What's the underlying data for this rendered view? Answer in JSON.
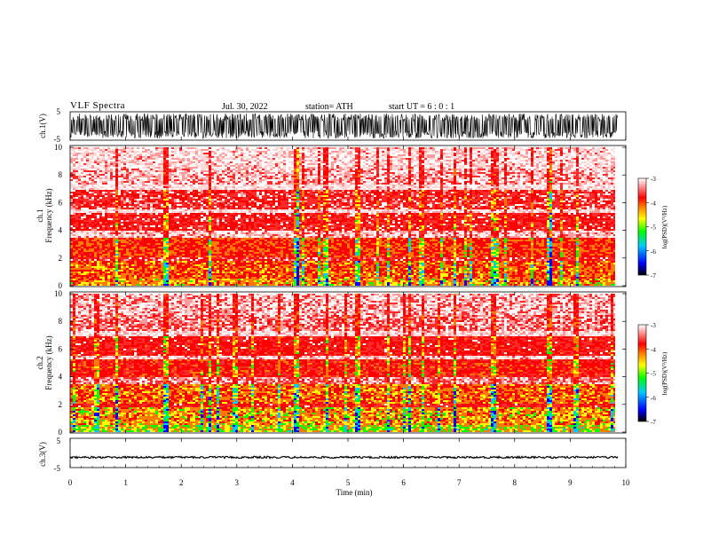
{
  "header": {
    "title": "VLF  Spectra",
    "date": "Jul.  30,  2022",
    "station": "station= ATH",
    "start": "start  UT  =    6  : 0   : 1"
  },
  "chart_data": [
    {
      "type": "line",
      "panel": "ch1-waveform",
      "ylabel": "ch.1(V)",
      "ylim": [
        -5,
        5
      ],
      "yticks": [
        "5",
        "-5"
      ],
      "xlim": [
        0,
        10
      ],
      "description_values": {
        "amplitude_range": [
          -5,
          5
        ],
        "data_end_min": 9.8
      }
    },
    {
      "type": "heatmap",
      "panel": "ch1-spectrogram",
      "ylabel": "ch.1\nFrequency  (kHz)",
      "ylabel_line1": "ch.1",
      "ylabel_line2": "Frequency  (kHz)",
      "ylim": [
        0,
        10
      ],
      "yticks": [
        "0",
        "2",
        "4",
        "6",
        "8",
        "10"
      ],
      "xlim": [
        0,
        10
      ],
      "colorbar": {
        "label": "log(PSD)(V²/Hz)",
        "range": [
          -7,
          -3
        ],
        "ticks": [
          "-3",
          "-4",
          "-5",
          "-6",
          "-7"
        ]
      }
    },
    {
      "type": "heatmap",
      "panel": "ch2-spectrogram",
      "ylabel_line1": "ch.2",
      "ylabel_line2": "Frequency  (kHz)",
      "ylim": [
        0,
        10
      ],
      "yticks": [
        "0",
        "2",
        "4",
        "6",
        "8",
        "10"
      ],
      "xlim": [
        0,
        10
      ],
      "colorbar": {
        "label": "log(PSD)(V²/Hz)",
        "range": [
          -7,
          -3
        ],
        "ticks": [
          "-3",
          "-4",
          "-5",
          "-6",
          "-7"
        ]
      }
    },
    {
      "type": "line",
      "panel": "ch3-waveform",
      "ylabel": "ch.3(V)",
      "ylim": [
        -5,
        5
      ],
      "yticks": [
        "5",
        "-5"
      ],
      "xlim": [
        0,
        10
      ],
      "xlabel": "Time  (min)",
      "xticks": [
        "0",
        "1",
        "2",
        "3",
        "4",
        "5",
        "6",
        "7",
        "8",
        "9",
        "10"
      ],
      "description_values": {
        "level": -1.5
      }
    }
  ],
  "colors": {
    "scale": [
      "#000000",
      "#0000ff",
      "#00c8ff",
      "#00ff00",
      "#ffff00",
      "#ff8000",
      "#ff0000",
      "#ffffff"
    ]
  }
}
